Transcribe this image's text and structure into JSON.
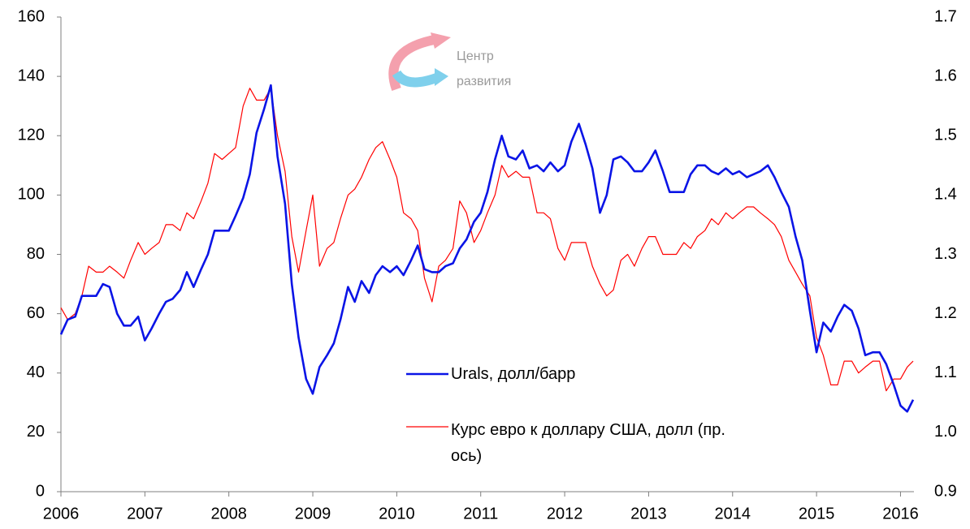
{
  "chart_data": {
    "type": "line",
    "watermark": [
      "Центр",
      "развития"
    ],
    "x": [
      2006.0,
      2006.08,
      2006.17,
      2006.25,
      2006.33,
      2006.42,
      2006.5,
      2006.58,
      2006.67,
      2006.75,
      2006.83,
      2006.92,
      2007.0,
      2007.08,
      2007.17,
      2007.25,
      2007.33,
      2007.42,
      2007.5,
      2007.58,
      2007.67,
      2007.75,
      2007.83,
      2007.92,
      2008.0,
      2008.08,
      2008.17,
      2008.25,
      2008.33,
      2008.42,
      2008.5,
      2008.58,
      2008.67,
      2008.75,
      2008.83,
      2008.92,
      2009.0,
      2009.08,
      2009.17,
      2009.25,
      2009.33,
      2009.42,
      2009.5,
      2009.58,
      2009.67,
      2009.75,
      2009.83,
      2009.92,
      2010.0,
      2010.08,
      2010.17,
      2010.25,
      2010.33,
      2010.42,
      2010.5,
      2010.58,
      2010.67,
      2010.75,
      2010.83,
      2010.92,
      2011.0,
      2011.08,
      2011.17,
      2011.25,
      2011.33,
      2011.42,
      2011.5,
      2011.58,
      2011.67,
      2011.75,
      2011.83,
      2011.92,
      2012.0,
      2012.08,
      2012.17,
      2012.25,
      2012.33,
      2012.42,
      2012.5,
      2012.58,
      2012.67,
      2012.75,
      2012.83,
      2012.92,
      2013.0,
      2013.08,
      2013.17,
      2013.25,
      2013.33,
      2013.42,
      2013.5,
      2013.58,
      2013.67,
      2013.75,
      2013.83,
      2013.92,
      2014.0,
      2014.08,
      2014.17,
      2014.25,
      2014.33,
      2014.42,
      2014.5,
      2014.58,
      2014.67,
      2014.75,
      2014.83,
      2014.92,
      2015.0,
      2015.08,
      2015.17,
      2015.25,
      2015.33,
      2015.42,
      2015.5,
      2015.58,
      2015.67,
      2015.75,
      2015.83,
      2015.92,
      2016.0,
      2016.08,
      2016.15
    ],
    "series": [
      {
        "name": "Urals, долл/барр",
        "color": "#0a14e6",
        "values": [
          53,
          58,
          59,
          66,
          66,
          66,
          70,
          69,
          60,
          56,
          56,
          59,
          51,
          55,
          60,
          64,
          65,
          68,
          74,
          69,
          75,
          80,
          88,
          88,
          88,
          93,
          99,
          107,
          121,
          129,
          137,
          113,
          97,
          70,
          52,
          38,
          33,
          42,
          46,
          50,
          58,
          69,
          64,
          71,
          67,
          73,
          76,
          74,
          76,
          73,
          78,
          83,
          75,
          74,
          74,
          76,
          77,
          82,
          85,
          91,
          94,
          101,
          112,
          120,
          113,
          112,
          115,
          109,
          110,
          108,
          111,
          108,
          110,
          118,
          124,
          117,
          109,
          94,
          100,
          112,
          113,
          111,
          108,
          108,
          111,
          115,
          108,
          101,
          101,
          101,
          107,
          110,
          110,
          108,
          107,
          109,
          107,
          108,
          106,
          107,
          108,
          110,
          106,
          101,
          96,
          86,
          78,
          61,
          47,
          57,
          54,
          59,
          63,
          61,
          55,
          46,
          47,
          47,
          43,
          36,
          29,
          27,
          31
        ]
      },
      {
        "name": "Курс евро к доллару США, долл  (пр. ось)",
        "color": "#ff0000",
        "axis": "y2",
        "values": [
          1.21,
          1.19,
          1.2,
          1.23,
          1.28,
          1.27,
          1.27,
          1.28,
          1.27,
          1.26,
          1.29,
          1.32,
          1.3,
          1.31,
          1.32,
          1.35,
          1.35,
          1.34,
          1.37,
          1.36,
          1.39,
          1.42,
          1.47,
          1.46,
          1.47,
          1.48,
          1.55,
          1.58,
          1.56,
          1.56,
          1.58,
          1.5,
          1.44,
          1.33,
          1.27,
          1.34,
          1.4,
          1.28,
          1.31,
          1.32,
          1.36,
          1.4,
          1.41,
          1.43,
          1.46,
          1.48,
          1.49,
          1.46,
          1.43,
          1.37,
          1.36,
          1.34,
          1.26,
          1.22,
          1.28,
          1.29,
          1.31,
          1.39,
          1.37,
          1.32,
          1.34,
          1.37,
          1.4,
          1.45,
          1.43,
          1.44,
          1.43,
          1.43,
          1.37,
          1.37,
          1.36,
          1.31,
          1.29,
          1.32,
          1.32,
          1.32,
          1.28,
          1.25,
          1.23,
          1.24,
          1.29,
          1.3,
          1.28,
          1.31,
          1.33,
          1.33,
          1.3,
          1.3,
          1.3,
          1.32,
          1.31,
          1.33,
          1.34,
          1.36,
          1.35,
          1.37,
          1.36,
          1.37,
          1.38,
          1.38,
          1.37,
          1.36,
          1.35,
          1.33,
          1.29,
          1.27,
          1.25,
          1.23,
          1.16,
          1.13,
          1.08,
          1.08,
          1.12,
          1.12,
          1.1,
          1.11,
          1.12,
          1.12,
          1.07,
          1.09,
          1.09,
          1.11,
          1.12
        ]
      }
    ],
    "xlim": [
      2006,
      2016.16
    ],
    "xticks": [
      2006,
      2007,
      2008,
      2009,
      2010,
      2011,
      2012,
      2013,
      2014,
      2015,
      2016
    ],
    "ylim": [
      0,
      160
    ],
    "yticks": [
      0,
      20,
      40,
      60,
      80,
      100,
      120,
      140,
      160
    ],
    "y2lim": [
      0.9,
      1.7
    ],
    "y2ticks": [
      0.9,
      {
        "value": 1,
        "label": "1.0"
      },
      1.1,
      1.2,
      1.3,
      1.4,
      1.5,
      1.6,
      1.7
    ],
    "grid": false
  }
}
